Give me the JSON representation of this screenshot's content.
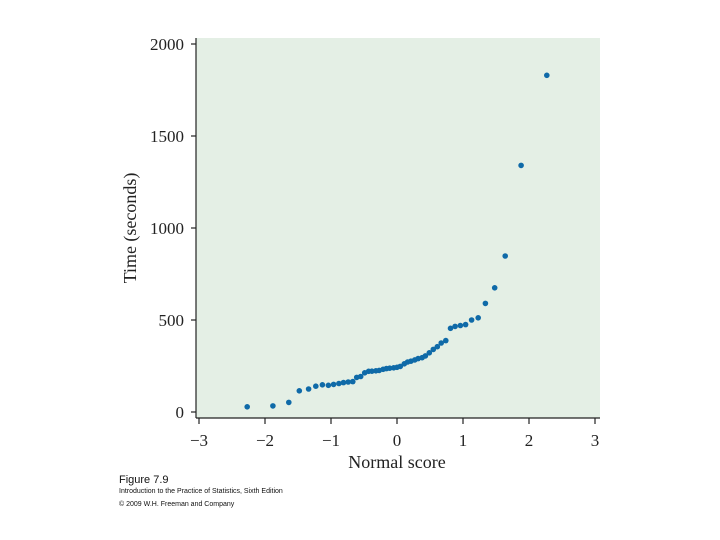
{
  "chart_data": {
    "type": "scatter",
    "title": "",
    "xlabel": "Normal score",
    "ylabel": "Time (seconds)",
    "xlim": [
      -3,
      3
    ],
    "ylim": [
      0,
      2000
    ],
    "x_ticks": [
      -3,
      -2,
      -1,
      0,
      1,
      2,
      3
    ],
    "x_tick_labels": [
      "−3",
      "−2",
      "−1",
      "0",
      "1",
      "2",
      "3"
    ],
    "y_ticks": [
      0,
      500,
      1000,
      1500,
      2000
    ],
    "y_tick_labels": [
      "0",
      "500",
      "1000",
      "1500",
      "2000"
    ],
    "grid": false,
    "background_color": "#e4efe5",
    "point_color": "#0f6aa8",
    "points": [
      {
        "x": -2.27,
        "y": 28
      },
      {
        "x": -1.88,
        "y": 33
      },
      {
        "x": -1.64,
        "y": 52
      },
      {
        "x": -1.48,
        "y": 115
      },
      {
        "x": -1.34,
        "y": 125
      },
      {
        "x": -1.23,
        "y": 140
      },
      {
        "x": -1.13,
        "y": 148
      },
      {
        "x": -1.04,
        "y": 145
      },
      {
        "x": -0.96,
        "y": 150
      },
      {
        "x": -0.88,
        "y": 155
      },
      {
        "x": -0.81,
        "y": 160
      },
      {
        "x": -0.74,
        "y": 163
      },
      {
        "x": -0.67,
        "y": 165
      },
      {
        "x": -0.61,
        "y": 188
      },
      {
        "x": -0.55,
        "y": 193
      },
      {
        "x": -0.49,
        "y": 213
      },
      {
        "x": -0.43,
        "y": 221
      },
      {
        "x": -0.38,
        "y": 222
      },
      {
        "x": -0.32,
        "y": 224
      },
      {
        "x": -0.27,
        "y": 226
      },
      {
        "x": -0.21,
        "y": 232
      },
      {
        "x": -0.16,
        "y": 236
      },
      {
        "x": -0.11,
        "y": 238
      },
      {
        "x": -0.05,
        "y": 240
      },
      {
        "x": 0.0,
        "y": 243
      },
      {
        "x": 0.05,
        "y": 248
      },
      {
        "x": 0.11,
        "y": 262
      },
      {
        "x": 0.16,
        "y": 272
      },
      {
        "x": 0.21,
        "y": 276
      },
      {
        "x": 0.27,
        "y": 283
      },
      {
        "x": 0.32,
        "y": 290
      },
      {
        "x": 0.38,
        "y": 295
      },
      {
        "x": 0.43,
        "y": 305
      },
      {
        "x": 0.49,
        "y": 322
      },
      {
        "x": 0.55,
        "y": 340
      },
      {
        "x": 0.61,
        "y": 355
      },
      {
        "x": 0.67,
        "y": 375
      },
      {
        "x": 0.74,
        "y": 388
      },
      {
        "x": 0.81,
        "y": 455
      },
      {
        "x": 0.88,
        "y": 465
      },
      {
        "x": 0.96,
        "y": 470
      },
      {
        "x": 1.04,
        "y": 475
      },
      {
        "x": 1.13,
        "y": 500
      },
      {
        "x": 1.23,
        "y": 512
      },
      {
        "x": 1.34,
        "y": 590
      },
      {
        "x": 1.48,
        "y": 675
      },
      {
        "x": 1.64,
        "y": 848
      },
      {
        "x": 1.88,
        "y": 1340
      },
      {
        "x": 2.27,
        "y": 1830
      }
    ]
  },
  "captions": {
    "figure": "Figure 7.9",
    "source": "Introduction to the Practice of Statistics, Sixth Edition",
    "copyright": "© 2009 W.H. Freeman and Company"
  }
}
